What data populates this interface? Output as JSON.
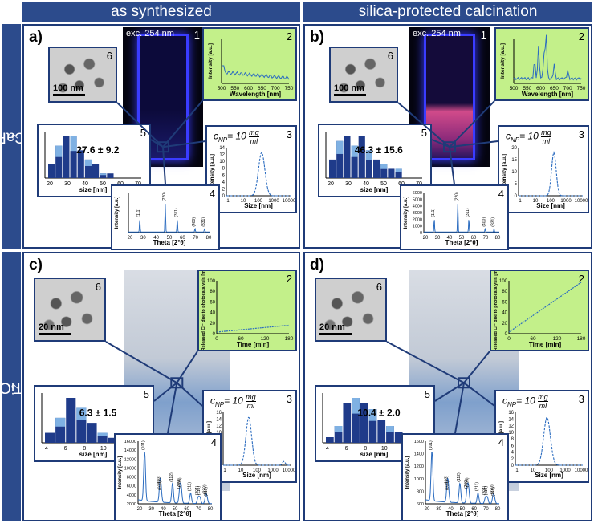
{
  "headers": {
    "col1": "as synthesized",
    "col2": "silica-protected calcination",
    "row1": "CaF2",
    "row1_main": "CaF",
    "row1_sub": "2",
    "row2": "TiO2",
    "row2_main": "TiO",
    "row2_sub": "2"
  },
  "panels": [
    {
      "id": "a",
      "label": "a)",
      "exc": "exc. 254 nm",
      "tem_scale": "100 nm",
      "size_text": "27.6 ± 9.2",
      "conc_main": "c",
      "conc_sub": "NP",
      "conc_eq": "= 10",
      "conc_num": "mg",
      "conc_den": "ml",
      "hist": {
        "xlabel": "size [nm]",
        "xticks": [
          "20",
          "30",
          "40",
          "50",
          "60",
          "70"
        ],
        "values": [
          3,
          7,
          9,
          9,
          6,
          4,
          3,
          1,
          1,
          0
        ]
      },
      "spectrum": {
        "xlabel": "Wavelength [nm]",
        "ylabel": "Intensity [a.u.]",
        "xticks": [
          "500",
          "550",
          "600",
          "650",
          "700",
          "750"
        ]
      },
      "dls": {
        "xlabel": "Size [nm]",
        "ylabel": "Intensity [a.u.]",
        "yticks": [
          "0",
          "2",
          "4",
          "6",
          "8",
          "10",
          "12",
          "14"
        ],
        "xticks": [
          "1",
          "10",
          "100",
          "1000",
          "10000"
        ]
      },
      "xrd": {
        "xlabel": "Theta [2°θ]",
        "ylabel": "Intensity [a.u.]",
        "xticks": [
          "20",
          "30",
          "40",
          "50",
          "60",
          "70",
          "80"
        ],
        "peaks": [
          "(111)",
          "(220)",
          "(311)",
          "(400)",
          "(331)"
        ]
      }
    },
    {
      "id": "b",
      "label": "b)",
      "exc": "exc. 254 nm",
      "tem_scale": "100 nm",
      "size_text": "46.3 ± 15.6",
      "conc_main": "c",
      "conc_sub": "NP",
      "conc_eq": "= 10",
      "conc_num": "mg",
      "conc_den": "ml",
      "hist": {
        "xlabel": "size [nm]",
        "xticks": [
          "20",
          "30",
          "40",
          "50",
          "60",
          "70"
        ],
        "values": [
          4,
          8,
          9,
          7,
          9,
          6,
          4,
          3,
          2,
          2
        ]
      },
      "spectrum": {
        "xlabel": "Wavelength [nm]",
        "ylabel": "Intensity [a.u.]",
        "xticks": [
          "500",
          "550",
          "600",
          "650",
          "700",
          "750"
        ]
      },
      "dls": {
        "xlabel": "Size [nm]",
        "ylabel": "Intensity [a.u.]",
        "yticks": [
          "0",
          "5",
          "10",
          "15",
          "20"
        ],
        "xticks": [
          "1",
          "10",
          "100",
          "1000",
          "10000"
        ]
      },
      "xrd": {
        "xlabel": "Theta [2°θ]",
        "ylabel": "Intensity [a.u.]",
        "yticks": [
          "0",
          "1000",
          "2000",
          "3000",
          "4000",
          "5000",
          "6000"
        ],
        "xticks": [
          "20",
          "30",
          "40",
          "50",
          "60",
          "70",
          "80"
        ],
        "peaks": [
          "(111)",
          "(220)",
          "(311)",
          "(400)",
          "(331)"
        ]
      }
    },
    {
      "id": "c",
      "label": "c)",
      "tem_scale": "20 nm",
      "size_text": "6.3 ± 1.5",
      "conc_main": "c",
      "conc_sub": "NP",
      "conc_eq": "= 10",
      "conc_num": "mg",
      "conc_den": "ml",
      "hist": {
        "xlabel": "size [nm]",
        "xticks": [
          "4",
          "6",
          "8",
          "10",
          "12",
          "14"
        ],
        "values": [
          2,
          5,
          9,
          7,
          4,
          2,
          1
        ]
      },
      "photo": {
        "xlabel": "Time [min]",
        "ylabel": "Released Cl⁻ due to photocatalysis [mg/l]",
        "yticks": [
          "0",
          "20",
          "40",
          "60",
          "80",
          "100"
        ],
        "xticks": [
          "0",
          "60",
          "120",
          "180"
        ]
      },
      "dls": {
        "xlabel": "Size [nm]",
        "ylabel": "Intensity [a.u.]",
        "yticks": [
          "0",
          "2",
          "4",
          "6",
          "8",
          "10",
          "12",
          "14",
          "16"
        ],
        "xticks": [
          "1",
          "10",
          "100",
          "1000",
          "10000"
        ]
      },
      "xrd": {
        "xlabel": "Theta [2°θ]",
        "ylabel": "Intensity [a.u.]",
        "yticks": [
          "2000",
          "4000",
          "6000",
          "8000",
          "10000",
          "12000",
          "14000",
          "16000"
        ],
        "xticks": [
          "20",
          "30",
          "40",
          "50",
          "60",
          "70",
          "80"
        ],
        "peaks": [
          "(101)",
          "(103)",
          "(004)",
          "(112)",
          "(200)",
          "(105)",
          "(211)",
          "(204)",
          "(116)",
          "(220)",
          "(215)"
        ]
      }
    },
    {
      "id": "d",
      "label": "d)",
      "tem_scale": "20 nm",
      "size_text": "10.4 ± 2.0",
      "conc_main": "c",
      "conc_sub": "NP",
      "conc_eq": "= 10",
      "conc_num": "mg",
      "conc_den": "ml",
      "hist": {
        "xlabel": "size [nm]",
        "xticks": [
          "4",
          "6",
          "8",
          "10",
          "12",
          "14"
        ],
        "values": [
          1,
          3,
          7,
          8,
          7,
          6,
          4,
          3,
          2
        ]
      },
      "photo": {
        "xlabel": "Time [min]",
        "ylabel": "Released Cl⁻ due to photocatalysis [mg/l]",
        "yticks": [
          "0",
          "20",
          "40",
          "60",
          "80",
          "100"
        ],
        "xticks": [
          "0",
          "60",
          "120",
          "180"
        ]
      },
      "dls": {
        "xlabel": "Size [nm]",
        "ylabel": "Intensity [a.u.]",
        "yticks": [
          "0",
          "2",
          "4",
          "6",
          "8",
          "10",
          "12",
          "14",
          "16"
        ],
        "xticks": [
          "1",
          "10",
          "100",
          "1000",
          "10000"
        ]
      },
      "xrd": {
        "xlabel": "Theta [2°θ]",
        "ylabel": "Intensity [a.u.]",
        "yticks": [
          "600",
          "800",
          "1000",
          "1200",
          "1400",
          "1600"
        ],
        "xticks": [
          "20",
          "30",
          "40",
          "50",
          "60",
          "70",
          "80"
        ],
        "peaks": [
          "(101)",
          "(103)",
          "(004)",
          "(112)",
          "(200)",
          "(105)",
          "(211)",
          "(204)",
          "(116)",
          "(220)",
          "(215)"
        ]
      }
    }
  ],
  "numbers": [
    "1",
    "2",
    "3",
    "4",
    "5",
    "6"
  ],
  "colors": {
    "header": "#2c4b8c",
    "frame": "#1f3b78",
    "plot": "#2b6cc0",
    "panel_green": "#c3f08a",
    "hist_dark": "#1f3b8a",
    "hist_light": "#7fb1e3"
  }
}
